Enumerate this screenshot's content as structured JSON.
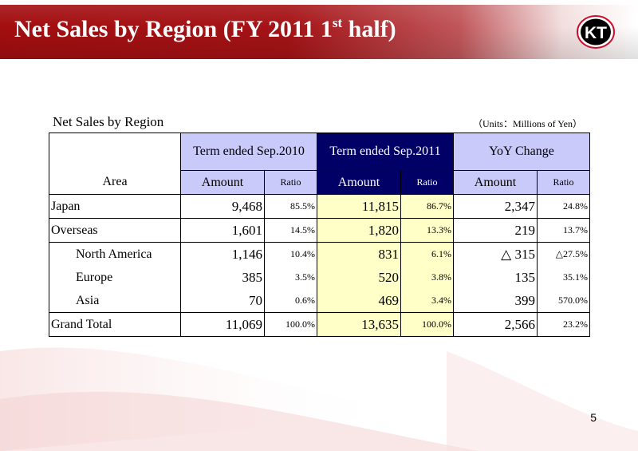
{
  "header": {
    "title_main": "Net Sales by Region (FY 2011 1",
    "title_sup": "st",
    "title_end": " half)"
  },
  "logo": {
    "icon": "kt-logo-icon",
    "text": "KT"
  },
  "table": {
    "title": "Net Sales by Region",
    "units": "（Units：Millions of Yen）",
    "area_header": "Area",
    "groups": [
      "Term ended Sep.2010",
      "Term ended Sep.2011",
      "YoY Change"
    ],
    "subheaders": {
      "amount": "Amount",
      "ratio": "Ratio"
    },
    "rows": [
      {
        "area": "Japan",
        "a2010": "9,468",
        "r2010": "85.5%",
        "a2011": "11,815",
        "r2011": "86.7%",
        "ayoy": "2,347",
        "ryoy": "24.8%"
      },
      {
        "area": "Overseas",
        "a2010": "1,601",
        "r2010": "14.5%",
        "a2011": "1,820",
        "r2011": "13.3%",
        "ayoy": "219",
        "ryoy": "13.7%"
      },
      {
        "area": "North America",
        "a2010": "1,146",
        "r2010": "10.4%",
        "a2011": "831",
        "r2011": "6.1%",
        "ayoy": "△ 315",
        "ryoy": "△27.5%"
      },
      {
        "area": "Europe",
        "a2010": "385",
        "r2010": "3.5%",
        "a2011": "520",
        "r2011": "3.8%",
        "ayoy": "135",
        "ryoy": "35.1%"
      },
      {
        "area": "Asia",
        "a2010": "70",
        "r2010": "0.6%",
        "a2011": "469",
        "r2011": "3.4%",
        "ayoy": "399",
        "ryoy": "570.0%"
      },
      {
        "area": "Grand Total",
        "a2010": "11,069",
        "r2010": "100.0%",
        "a2011": "13,635",
        "r2011": "100.0%",
        "ayoy": "2,566",
        "ryoy": "23.2%"
      }
    ]
  },
  "page_number": "5",
  "colors": {
    "header_red": "#a30e10",
    "lavender": "#c9c9fa",
    "navy": "#000066",
    "pale_yellow": "#ffffc8"
  }
}
